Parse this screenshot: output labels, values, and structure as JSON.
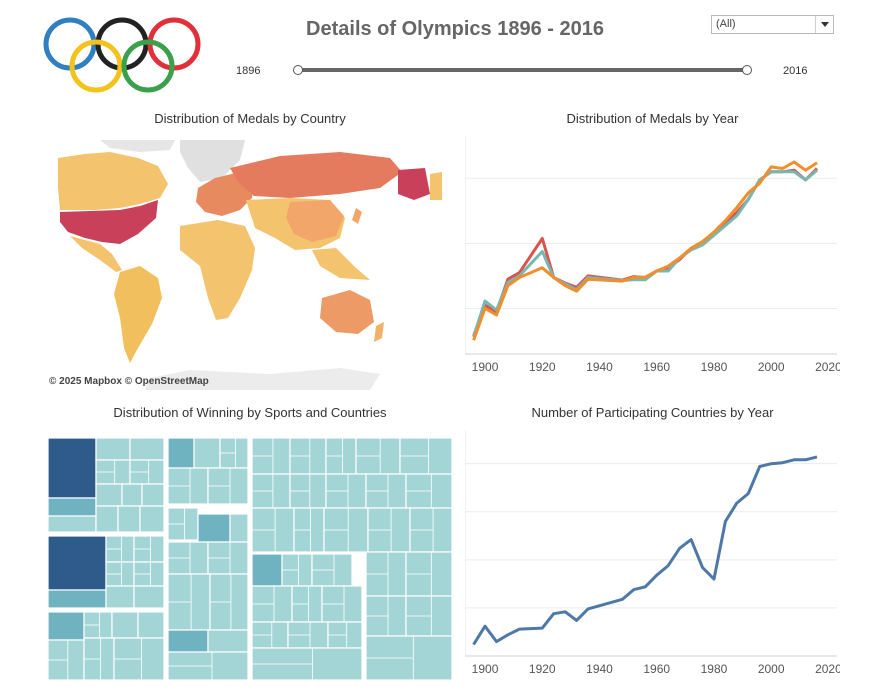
{
  "header": {
    "title": "Details of Olympics 1896 - 2016",
    "filter_value": "(All)",
    "slider_min_label": "1896",
    "slider_max_label": "2016"
  },
  "colors": {
    "ring_blue": "#2f7fc1",
    "ring_black": "#222222",
    "ring_red": "#e0303a",
    "ring_yellow": "#f3c21b",
    "ring_green": "#3aa14a",
    "line_red": "#d9534f",
    "line_teal": "#76b7b2",
    "line_orange": "#f28e2b",
    "participation_line": "#4e79a7",
    "treemap_dark": "#2e5b8a",
    "treemap_mid": "#6fb3c0",
    "treemap_light": "#a3d5d6"
  },
  "panels": {
    "map_title": "Distribution of Medals by Country",
    "map_attribution": "© 2025 Mapbox © OpenStreetMap",
    "medals_year_title": "Distribution of Medals by Year",
    "treemap_title": "Distribution of Winning by Sports and Countries",
    "countries_year_title": "Number of Participating Countries by Year"
  },
  "chart_data": [
    {
      "type": "line",
      "id": "medals_by_year",
      "x": [
        1896,
        1900,
        1904,
        1908,
        1912,
        1920,
        1924,
        1928,
        1932,
        1936,
        1948,
        1952,
        1956,
        1960,
        1964,
        1968,
        1972,
        1976,
        1980,
        1984,
        1988,
        1992,
        1996,
        2000,
        2004,
        2008,
        2012,
        2016
      ],
      "series": [
        {
          "color_key": "line_red",
          "values": [
            160,
            1100,
            900,
            1900,
            2100,
            3150,
            1950,
            1780,
            1650,
            2000,
            1870,
            1980,
            1950,
            2150,
            2250,
            2500,
            2850,
            3050,
            3300,
            3650,
            3950,
            4350,
            4950,
            5200,
            5200,
            5250,
            4950,
            5300
          ]
        },
        {
          "color_key": "line_teal",
          "values": [
            130,
            1230,
            950,
            1800,
            2000,
            2750,
            1950,
            1750,
            1580,
            1950,
            1860,
            1880,
            1880,
            2150,
            2150,
            2550,
            2800,
            2950,
            3250,
            3550,
            3850,
            4350,
            4950,
            5200,
            5200,
            5200,
            4950,
            5250
          ]
        },
        {
          "color_key": "line_orange",
          "values": [
            20,
            1000,
            800,
            1700,
            1950,
            2250,
            1950,
            1700,
            1530,
            1900,
            1840,
            1960,
            1960,
            2150,
            2300,
            2550,
            2850,
            3050,
            3350,
            3700,
            4100,
            4550,
            4850,
            5350,
            5300,
            5500,
            5250,
            5480
          ]
        }
      ],
      "xticks": [
        1900,
        1920,
        1940,
        1960,
        1980,
        2000,
        2020
      ],
      "xlim": [
        1893,
        2023
      ],
      "ylim": [
        -400,
        6300
      ],
      "grid_y": [
        1000,
        3000,
        5000
      ]
    },
    {
      "type": "line",
      "id": "participating_countries_by_year",
      "x": [
        1896,
        1900,
        1904,
        1908,
        1912,
        1920,
        1924,
        1928,
        1932,
        1936,
        1948,
        1952,
        1956,
        1960,
        1964,
        1968,
        1972,
        1976,
        1980,
        1984,
        1988,
        1992,
        1996,
        2000,
        2004,
        2008,
        2012,
        2016
      ],
      "values": [
        12,
        31,
        15,
        22,
        28,
        29,
        44,
        46,
        37,
        49,
        59,
        69,
        72,
        84,
        94,
        112,
        121,
        92,
        80,
        140,
        159,
        169,
        197,
        200,
        201,
        204,
        204,
        207
      ],
      "xticks": [
        1900,
        1920,
        1940,
        1960,
        1980,
        2000,
        2020
      ],
      "xlim": [
        1893,
        2023
      ],
      "ylim": [
        0,
        235
      ],
      "grid_y": [
        50,
        100,
        150,
        200
      ]
    }
  ]
}
